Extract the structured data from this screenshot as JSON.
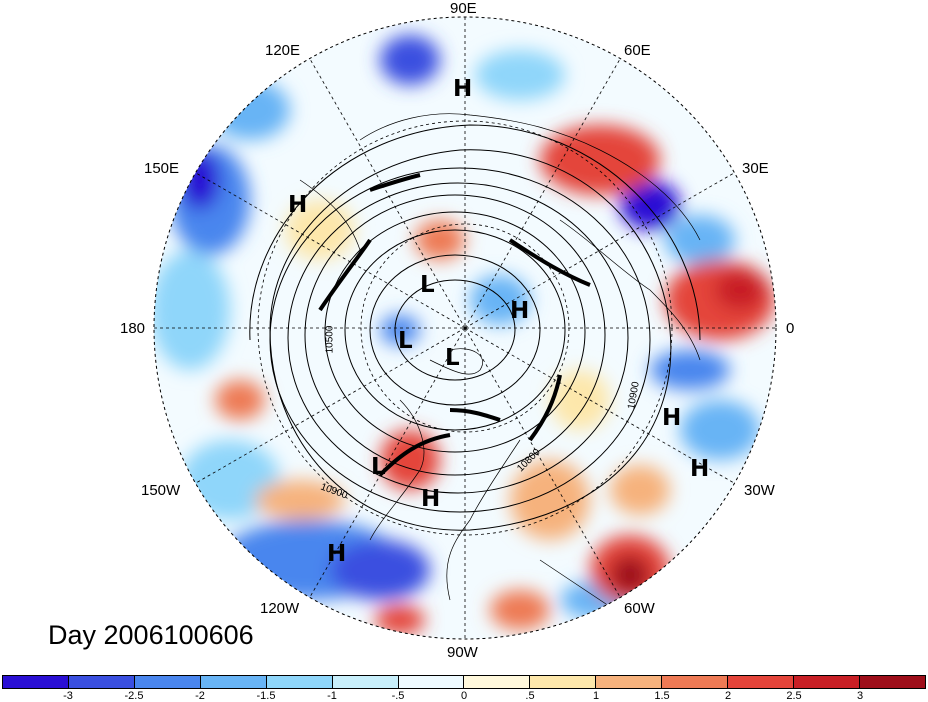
{
  "title": "Day 2006100606",
  "lon_labels": [
    {
      "text": "90E",
      "name": "lon-label-90e"
    },
    {
      "text": "60E",
      "name": "lon-label-60e"
    },
    {
      "text": "120E",
      "name": "lon-label-120e"
    },
    {
      "text": "30E",
      "name": "lon-label-30e"
    },
    {
      "text": "150E",
      "name": "lon-label-150e"
    },
    {
      "text": "180",
      "name": "lon-label-180"
    },
    {
      "text": "0",
      "name": "lon-label-0"
    },
    {
      "text": "150W",
      "name": "lon-label-150w"
    },
    {
      "text": "30W",
      "name": "lon-label-30w"
    },
    {
      "text": "120W",
      "name": "lon-label-120w"
    },
    {
      "text": "60W",
      "name": "lon-label-60w"
    },
    {
      "text": "90W",
      "name": "lon-label-90w"
    }
  ],
  "pressure_centers": [
    "H",
    "H",
    "L",
    "H",
    "L",
    "L",
    "H",
    "H",
    "L",
    "H",
    "H"
  ],
  "contour_labels": [
    "10500",
    "10900",
    "10900",
    "10800"
  ],
  "colorbar": {
    "colors": [
      "#2a0fd4",
      "#3a4fe0",
      "#4a86ee",
      "#68b4f5",
      "#8fd6fa",
      "#c8effb",
      "#eefaff",
      "#fff8dc",
      "#fde7ab",
      "#f6b27d",
      "#ee7a55",
      "#e4443a",
      "#c81f25",
      "#9e0e1a"
    ],
    "ticks": [
      "-3",
      "-2.5",
      "-2",
      "-1.5",
      "-1",
      "-.5",
      "0",
      ".5",
      "1",
      "1.5",
      "2",
      "2.5",
      "3"
    ]
  }
}
